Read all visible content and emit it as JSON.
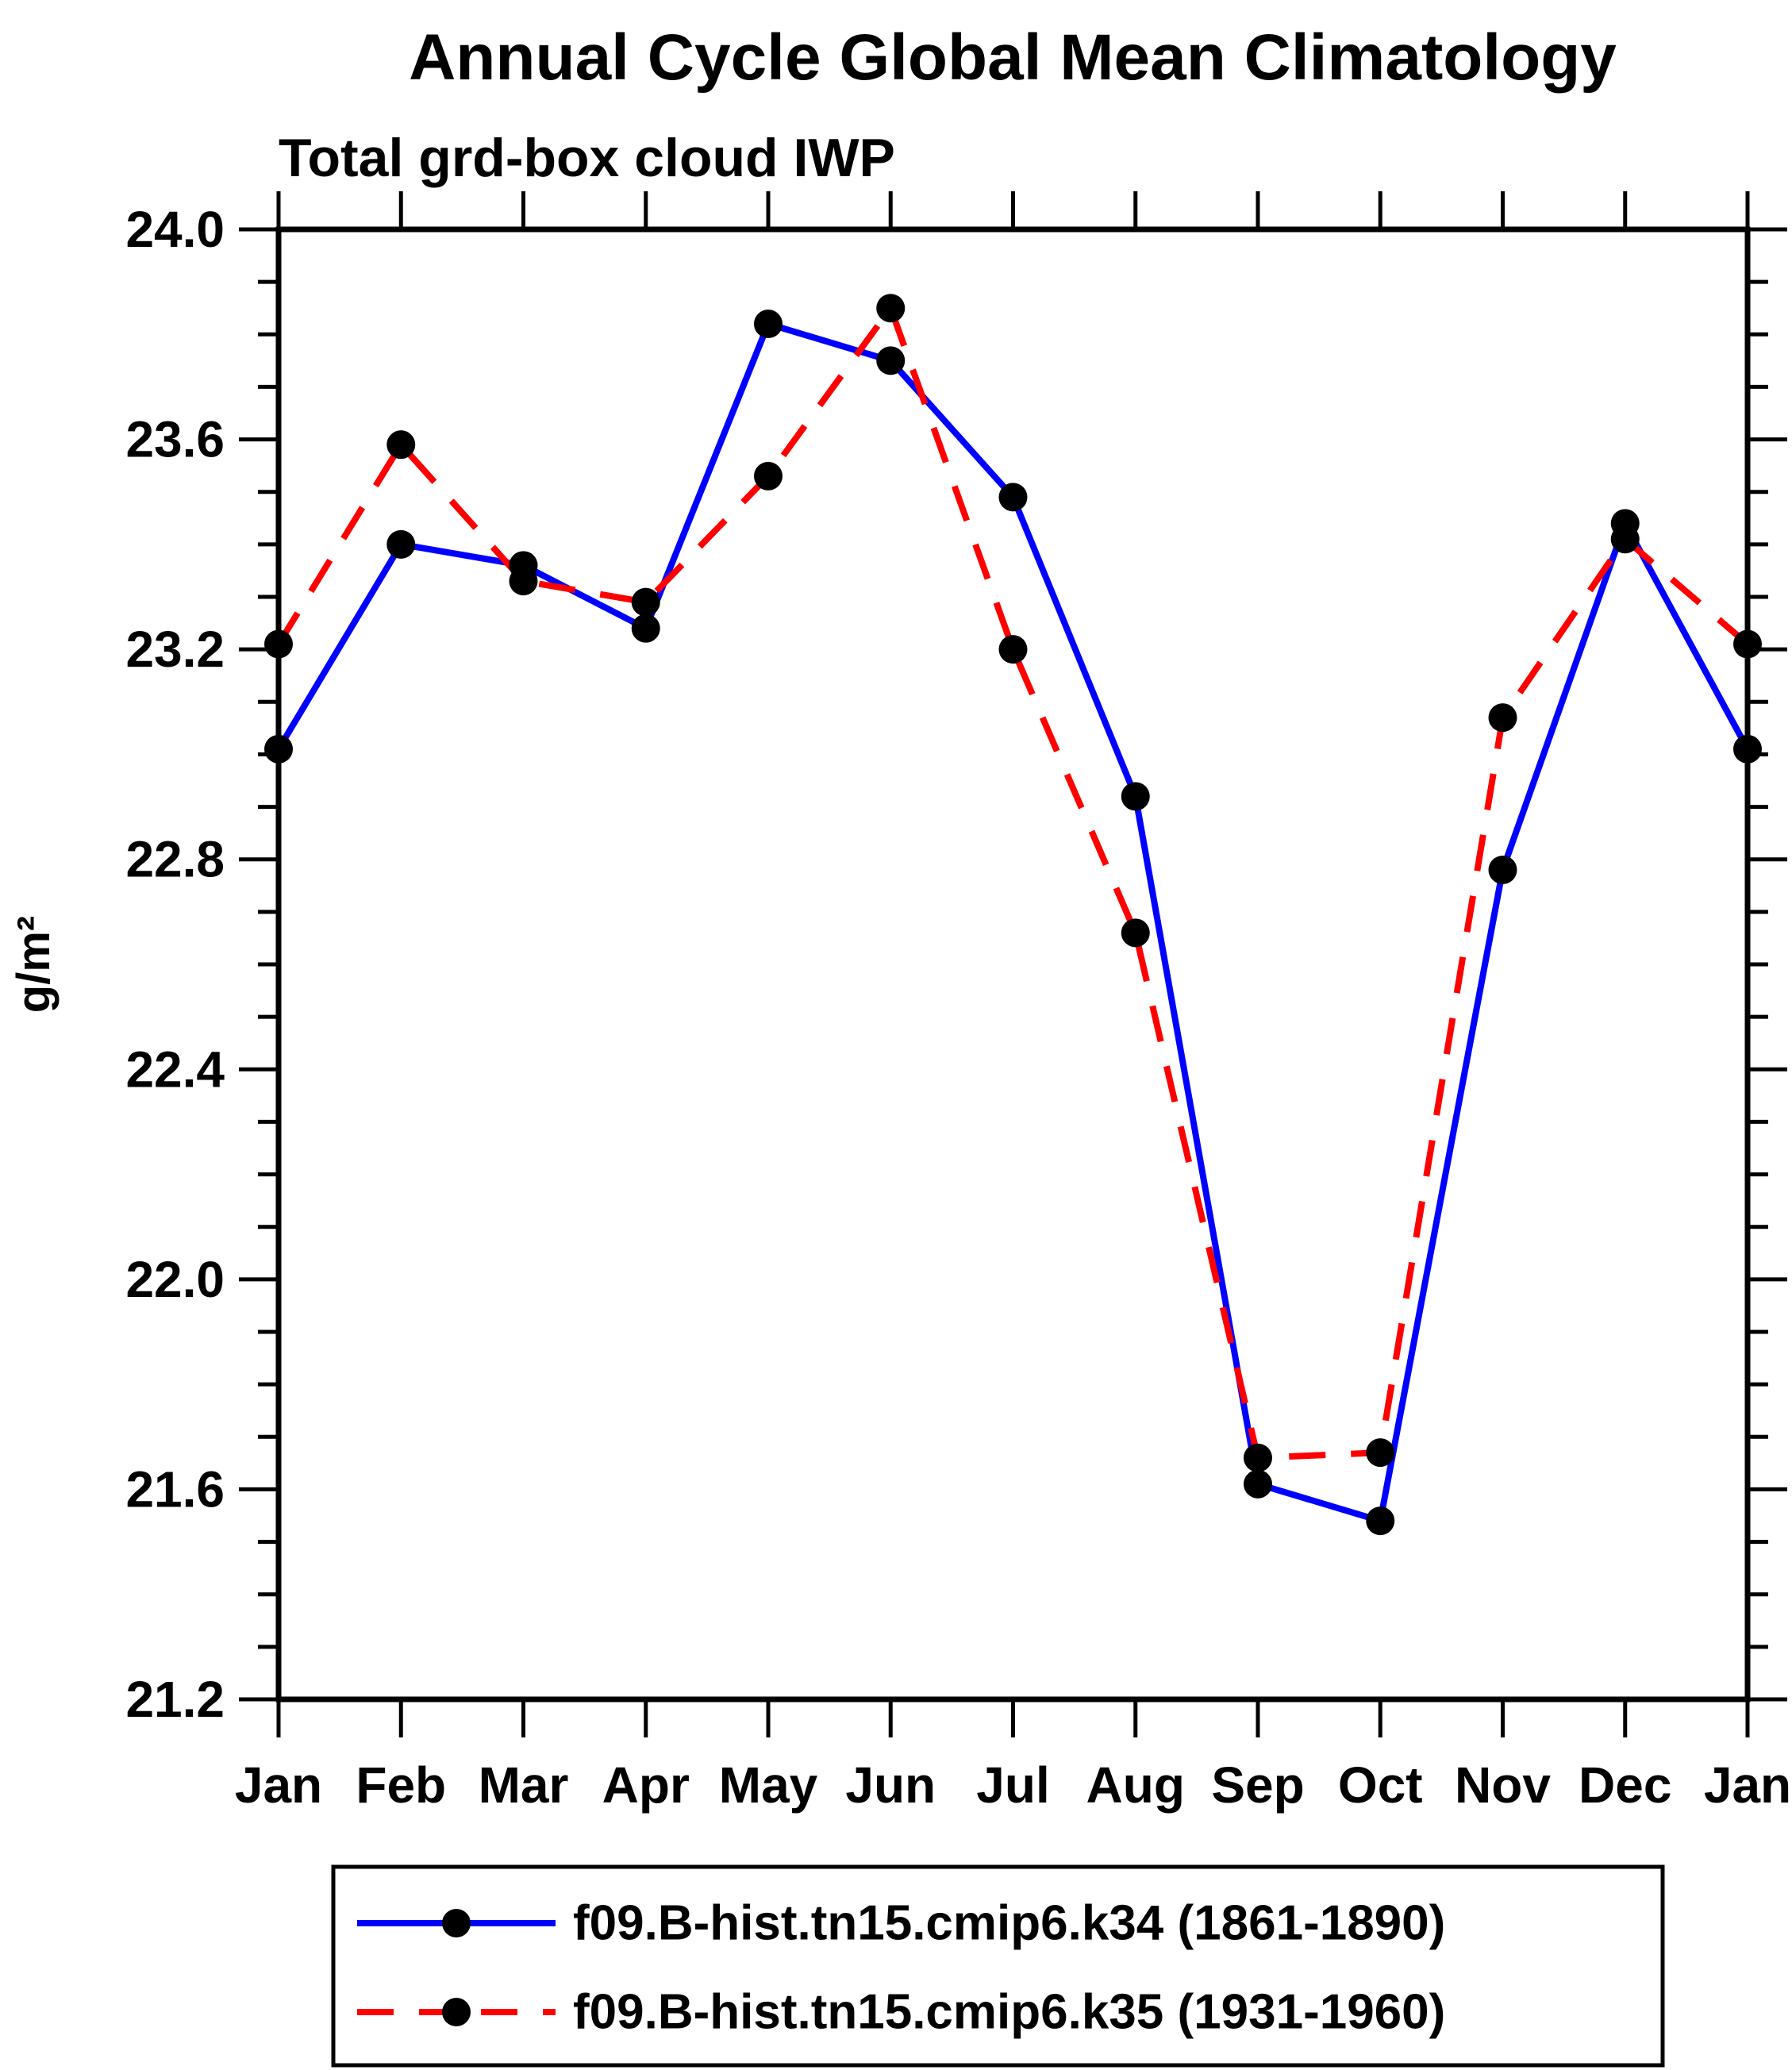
{
  "chart_data": {
    "type": "line",
    "title": "Annual Cycle Global Mean Climatology",
    "subtitle": "Total grd-box cloud IWP",
    "ylabel": "g/m²",
    "x_categories": [
      "Jan",
      "Feb",
      "Mar",
      "Apr",
      "May",
      "Jun",
      "Jul",
      "Aug",
      "Sep",
      "Oct",
      "Nov",
      "Dec",
      "Jan"
    ],
    "ylim": [
      21.2,
      24.0
    ],
    "y_major_step": 0.4,
    "y_minor_step": 0.1,
    "y_major_tick_labels": [
      "24.0",
      "23.6",
      "23.2",
      "22.8",
      "22.4",
      "22.0",
      "21.6",
      "21.2"
    ],
    "grid": false,
    "legend_position": "bottom",
    "series": [
      {
        "name": "f09.B-hist.tn15.cmip6.k34 (1861-1890)",
        "color": "#0000ff",
        "line_style": "solid",
        "marker": "filled-circle",
        "marker_color": "#000000",
        "values": [
          23.01,
          23.4,
          23.36,
          23.24,
          23.82,
          23.75,
          23.49,
          22.92,
          21.61,
          21.54,
          22.78,
          23.44,
          23.01
        ]
      },
      {
        "name": "f09.B-hist.tn15.cmip6.k35 (1931-1960)",
        "color": "#ff0000",
        "line_style": "dashed",
        "marker": "filled-circle",
        "marker_color": "#000000",
        "values": [
          23.21,
          23.59,
          23.33,
          23.29,
          23.53,
          23.85,
          23.2,
          22.66,
          21.66,
          21.67,
          23.07,
          23.41,
          23.21
        ]
      }
    ]
  },
  "colors": {
    "background": "#ffffff",
    "axis": "#000000",
    "series1": "#0000ff",
    "series2": "#ff0000",
    "marker": "#000000"
  }
}
